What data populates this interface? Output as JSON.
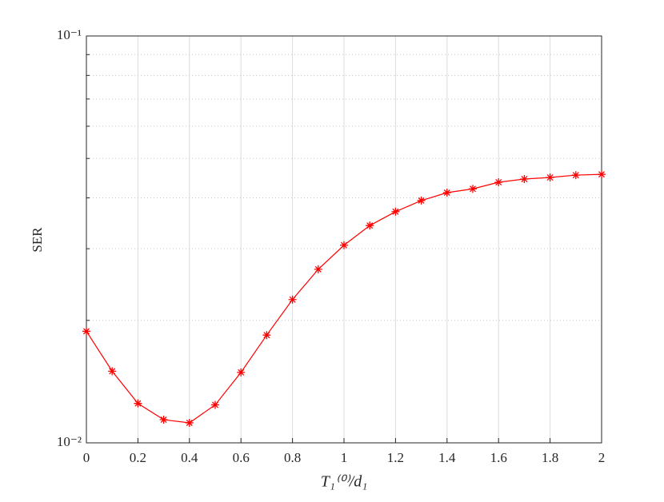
{
  "chart_data": {
    "type": "line",
    "ylabel": "SER",
    "xlabel": "T₁⁽⁰⁾/d₁",
    "x": [
      0,
      0.1,
      0.2,
      0.3,
      0.4,
      0.5,
      0.6,
      0.7,
      0.8,
      0.9,
      1.0,
      1.1,
      1.2,
      1.3,
      1.4,
      1.5,
      1.6,
      1.7,
      1.8,
      1.9,
      2.0
    ],
    "series": [
      {
        "color": "#ff0000",
        "values": [
          0.0188,
          0.015,
          0.0125,
          0.0114,
          0.0112,
          0.0124,
          0.0149,
          0.0184,
          0.0225,
          0.0267,
          0.0306,
          0.0342,
          0.037,
          0.0394,
          0.0412,
          0.0421,
          0.0437,
          0.0445,
          0.0449,
          0.0455,
          0.0457
        ]
      }
    ],
    "xlim": [
      0,
      2
    ],
    "xticks": [
      0,
      0.2,
      0.4,
      0.6,
      0.8,
      1,
      1.2,
      1.4,
      1.6,
      1.8,
      2
    ],
    "ylim": [
      0.01,
      0.1
    ],
    "ylog": true,
    "yticks": [
      {
        "value": 0.01,
        "label": "10⁻²"
      },
      {
        "value": 0.1,
        "label": "10⁻¹"
      }
    ],
    "yminor": [
      0.02,
      0.03,
      0.04,
      0.05,
      0.06,
      0.07,
      0.08,
      0.09
    ],
    "grid": true
  }
}
